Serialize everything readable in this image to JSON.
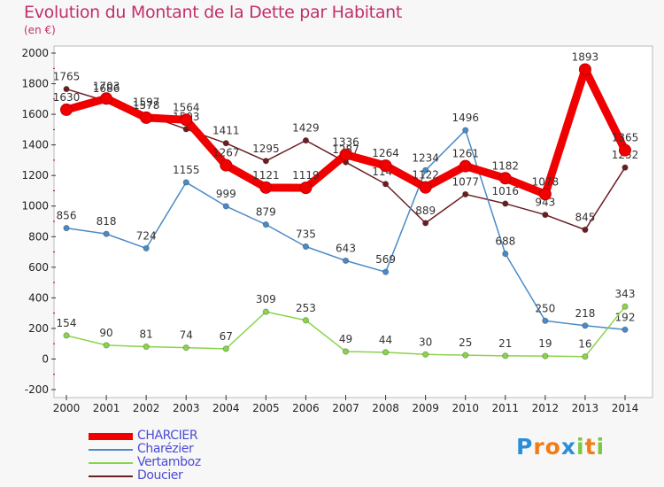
{
  "chart_data": {
    "type": "line",
    "title": "Evolution du Montant de la Dette par Habitant",
    "subtitle": "(en €)",
    "x": [
      "2000",
      "2001",
      "2002",
      "2003",
      "2004",
      "2005",
      "2006",
      "2007",
      "2008",
      "2009",
      "2010",
      "2011",
      "2012",
      "2013",
      "2014"
    ],
    "ylim": [
      -200,
      2000
    ],
    "yticks": [
      "-200",
      "0",
      "200",
      "400",
      "600",
      "800",
      "1000",
      "1200",
      "1400",
      "1600",
      "1800",
      "2000"
    ],
    "grid": false,
    "legend_position": "bottom-left",
    "series": [
      {
        "name": "Doucier",
        "color": "#6b1e22",
        "values": [
          1765,
          1686,
          1597,
          1503,
          1411,
          1295,
          1429,
          1287,
          1144,
          889,
          1077,
          1016,
          943,
          845,
          1252
        ],
        "labels": [
          "1765",
          "1686",
          "1597",
          "1503",
          "1411",
          "1295",
          "1429",
          "1287",
          "1144",
          "889",
          "1077",
          "1016",
          "943",
          "845",
          "1252"
        ]
      },
      {
        "name": "Charézier",
        "color": "#4a8ac6",
        "values": [
          856,
          818,
          724,
          1155,
          999,
          879,
          735,
          643,
          569,
          1234,
          1496,
          688,
          250,
          218,
          192
        ],
        "labels": [
          "856",
          "818",
          "724",
          "1155",
          "999",
          "879",
          "735",
          "643",
          "569",
          "1234",
          "1496",
          "688",
          "250",
          "218",
          "192"
        ]
      },
      {
        "name": "Vertamboz",
        "color": "#8ad44a",
        "values": [
          154,
          90,
          81,
          74,
          67,
          309,
          253,
          49,
          44,
          30,
          25,
          21,
          19,
          16,
          343
        ],
        "labels": [
          "154",
          "90",
          "81",
          "74",
          "67",
          "309",
          "253",
          "49",
          "44",
          "30",
          "25",
          "21",
          "19",
          "16",
          "343"
        ]
      },
      {
        "name": "CHARCIER",
        "color": "#f00000",
        "values": [
          1630,
          1703,
          1578,
          1564,
          1267,
          1121,
          1119,
          1336,
          1264,
          1122,
          1261,
          1182,
          1078,
          1893,
          1365
        ],
        "labels": [
          "1630",
          "1703",
          "1578",
          "1564",
          "1267",
          "1121",
          "1119",
          "1336",
          "1264",
          "1122",
          "1261",
          "1182",
          "1078",
          "1893",
          "1365"
        ]
      }
    ]
  },
  "legend": {
    "items": [
      {
        "label": "CHARCIER",
        "color": "#f00000"
      },
      {
        "label": "Charézier",
        "color": "#4a8ac6"
      },
      {
        "label": "Vertamboz",
        "color": "#8ad44a"
      },
      {
        "label": "Doucier",
        "color": "#6b1e22"
      }
    ]
  },
  "brand": {
    "letters": [
      "P",
      "r",
      "o",
      "x",
      "i",
      "t",
      "i"
    ],
    "colors": [
      "#2a8fd8",
      "#f07d1a",
      "#f07d1a",
      "#2a8fd8",
      "#7ac943",
      "#f07d1a",
      "#7ac943"
    ]
  }
}
